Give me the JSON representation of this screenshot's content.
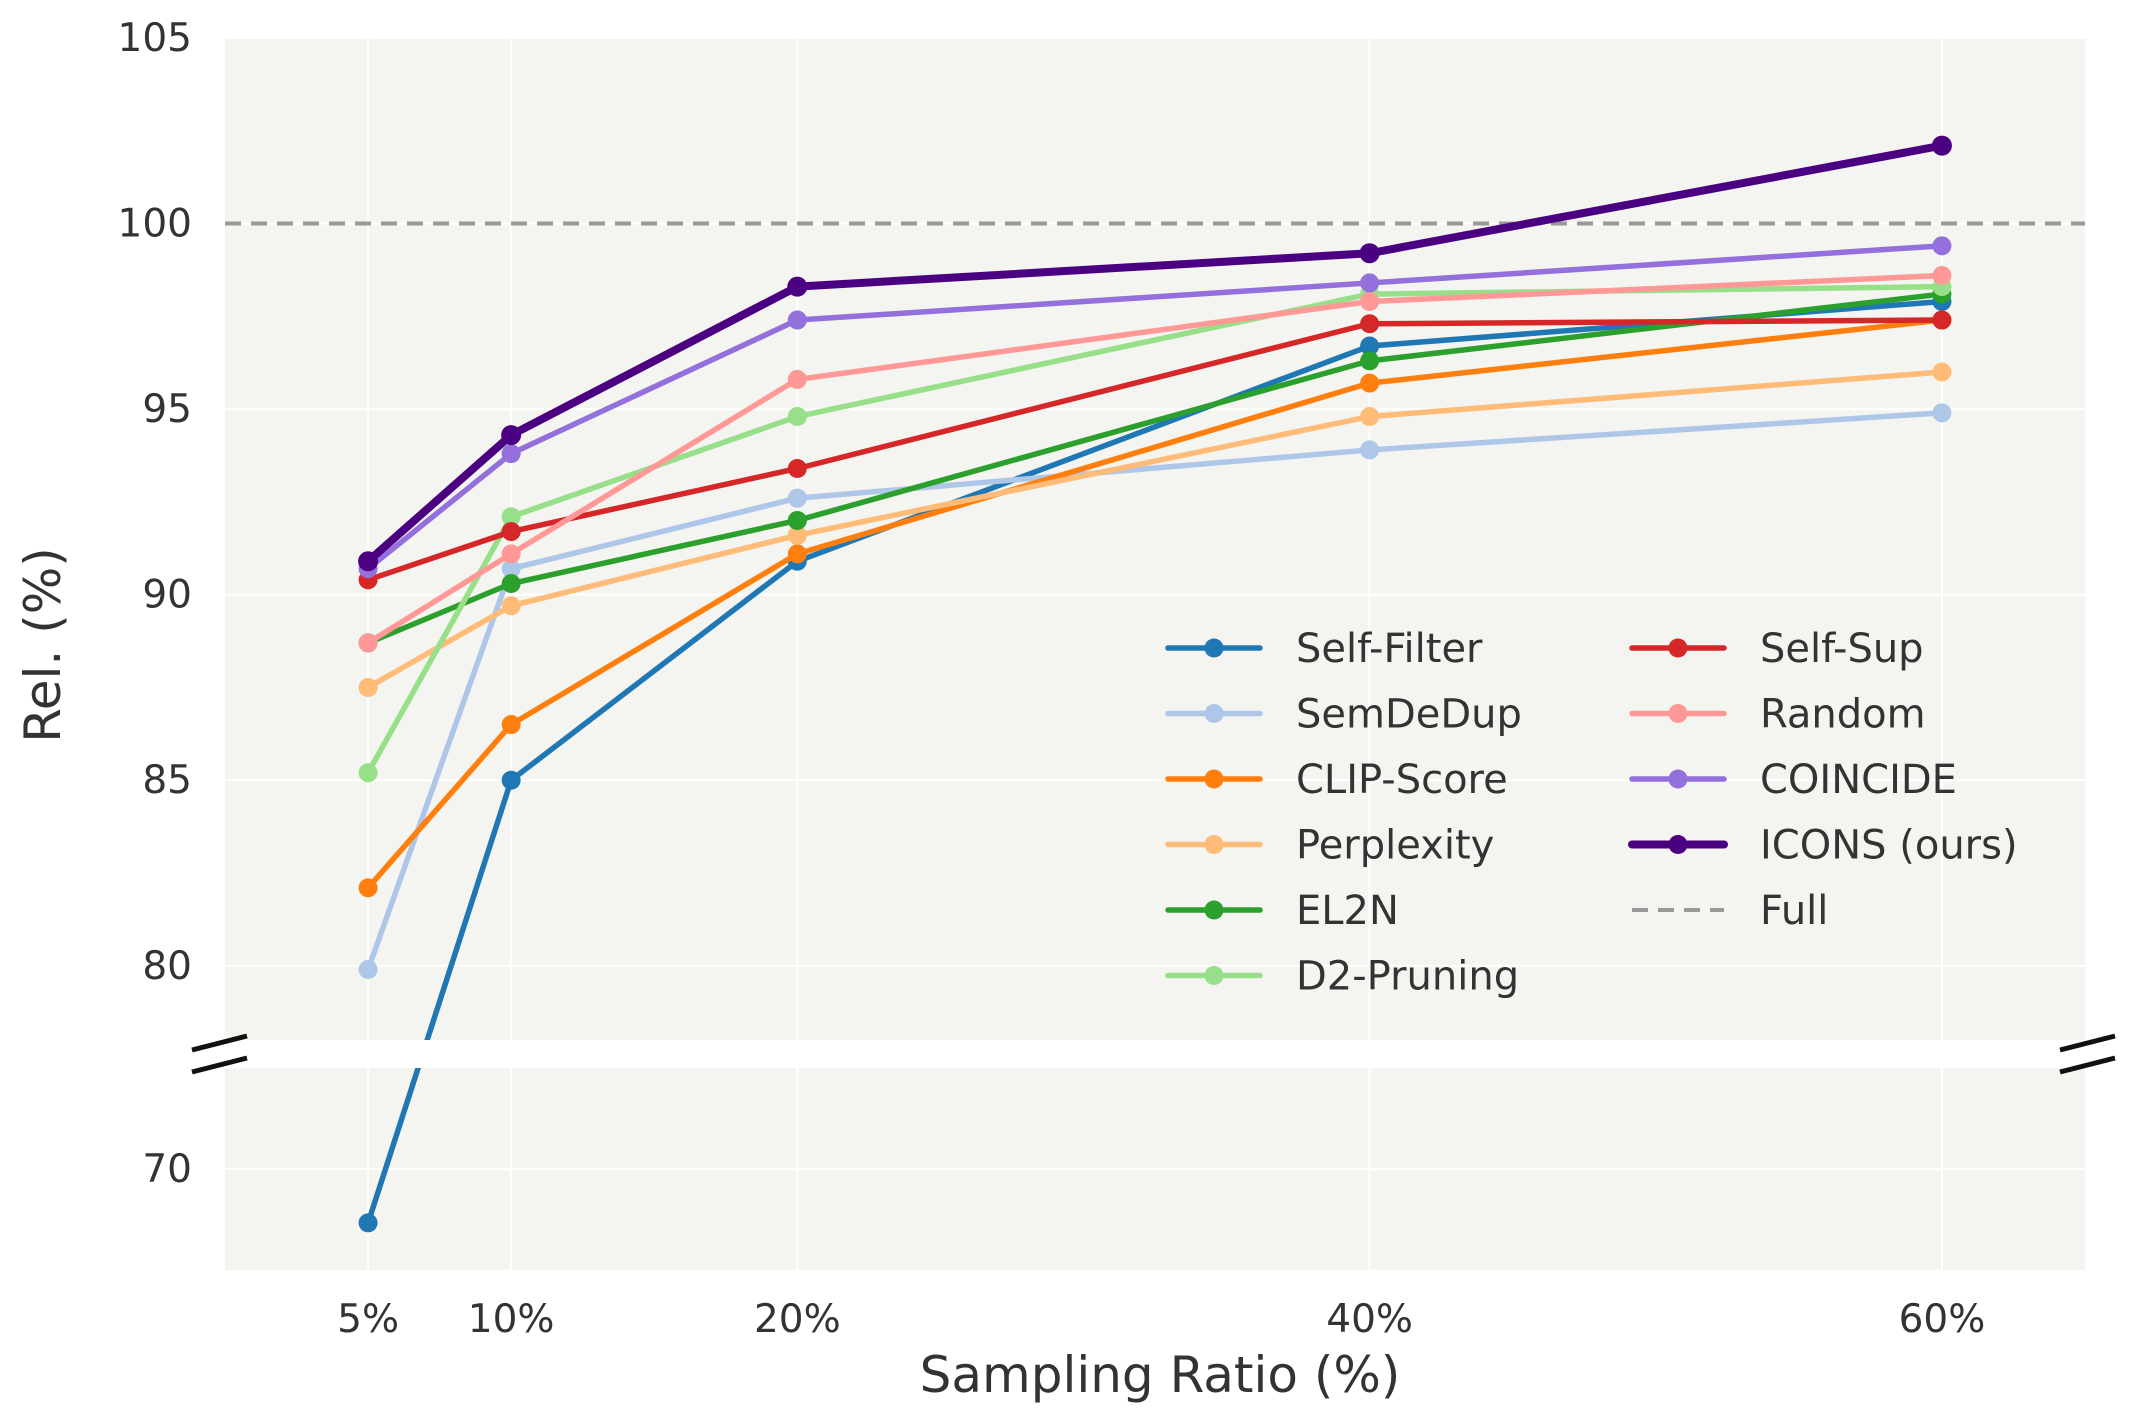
{
  "chart_data": {
    "type": "line",
    "title": "",
    "xlabel": "Sampling Ratio (%)",
    "ylabel": "Rel. (%)",
    "x": [
      5,
      10,
      20,
      40,
      60
    ],
    "x_tick_labels": [
      "5%",
      "10%",
      "20%",
      "40%",
      "60%"
    ],
    "xlim": [
      0,
      65
    ],
    "y_axis_broken": true,
    "upper_ylim": [
      78,
      105
    ],
    "lower_ylim": [
      67,
      73
    ],
    "upper_y_ticks": [
      80,
      85,
      90,
      95,
      100,
      105
    ],
    "upper_y_tick_labels": [
      "80",
      "85",
      "90",
      "95",
      "100",
      "105"
    ],
    "lower_y_ticks": [
      70
    ],
    "lower_y_tick_labels": [
      "70"
    ],
    "grid": true,
    "legend_position": "lower-right",
    "legend_columns": 2,
    "reference_line": {
      "name": "Full",
      "value": 100,
      "style": "dashed",
      "color": "#999999"
    },
    "series": [
      {
        "name": "Self-Filter",
        "color": "#1f77b4",
        "values": [
          68.4,
          85.0,
          90.9,
          96.7,
          97.9
        ]
      },
      {
        "name": "SemDeDup",
        "color": "#aec7e8",
        "values": [
          79.9,
          90.7,
          92.6,
          93.9,
          94.9
        ]
      },
      {
        "name": "CLIP-Score",
        "color": "#ff7f0e",
        "values": [
          82.1,
          86.5,
          91.1,
          95.7,
          97.4
        ]
      },
      {
        "name": "Perplexity",
        "color": "#ffbb78",
        "values": [
          87.5,
          89.7,
          91.6,
          94.8,
          96.0
        ]
      },
      {
        "name": "EL2N",
        "color": "#2ca02c",
        "values": [
          88.7,
          90.3,
          92.0,
          96.3,
          98.1
        ]
      },
      {
        "name": "D2-Pruning",
        "color": "#98df8a",
        "values": [
          85.2,
          92.1,
          94.8,
          98.1,
          98.3
        ]
      },
      {
        "name": "Self-Sup",
        "color": "#d62728",
        "values": [
          90.4,
          91.7,
          93.4,
          97.3,
          97.4
        ]
      },
      {
        "name": "Random",
        "color": "#ff9896",
        "values": [
          88.7,
          91.1,
          95.8,
          97.9,
          98.6
        ]
      },
      {
        "name": "COINCIDE",
        "color": "#9370db",
        "values": [
          90.7,
          93.8,
          97.4,
          98.4,
          99.4
        ]
      },
      {
        "name": "ICONS (ours)",
        "color": "#4b0082",
        "values": [
          90.9,
          94.3,
          98.3,
          99.2,
          102.1
        ]
      }
    ],
    "legend": {
      "col1": [
        "Self-Filter",
        "SemDeDup",
        "CLIP-Score",
        "Perplexity",
        "EL2N",
        "D2-Pruning"
      ],
      "col2": [
        "Self-Sup",
        "Random",
        "COINCIDE",
        "ICONS (ours)",
        "Full"
      ]
    }
  }
}
